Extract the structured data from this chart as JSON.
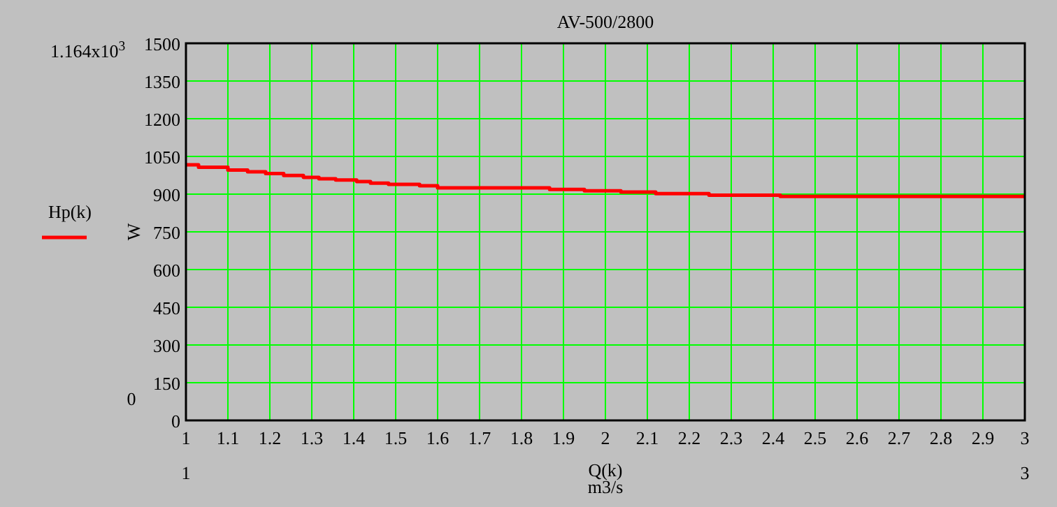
{
  "chart_data": {
    "type": "step",
    "title": "AV-500/2800",
    "xlabel": "Q(k)",
    "ylabel": "W",
    "annotations": [
      "1.164x10$^{3}$",
      "0",
      "1",
      "3",
      "m3/s"
    ],
    "x": [
      1,
      1.03,
      1.1,
      1.147,
      1.19,
      1.233,
      1.28,
      1.317,
      1.357,
      1.407,
      1.44,
      1.483,
      1.557,
      1.6,
      1.867,
      1.95,
      2.037,
      2.12,
      2.247,
      2.417,
      3
    ],
    "series": [
      {
        "name": "Hp(k)",
        "color": "#ff0000",
        "values": [
          1017,
          1007,
          996,
          989,
          982,
          974,
          967,
          961,
          956,
          950,
          944,
          939,
          933,
          925,
          919,
          913,
          908,
          902,
          896,
          891,
          891
        ]
      }
    ],
    "xlim": [
      1,
      3
    ],
    "ylim": [
      0,
      1500
    ],
    "xticks": [
      1,
      1.1,
      1.2,
      1.3,
      1.4,
      1.5,
      1.6,
      1.7,
      1.8,
      1.9,
      2,
      2.1,
      2.2,
      2.3,
      2.4,
      2.5,
      2.6,
      2.7,
      2.8,
      2.9,
      3
    ],
    "yticks": [
      0,
      150,
      300,
      450,
      600,
      750,
      900,
      1050,
      1200,
      1350,
      1500
    ],
    "grid": true,
    "legend": "left"
  }
}
